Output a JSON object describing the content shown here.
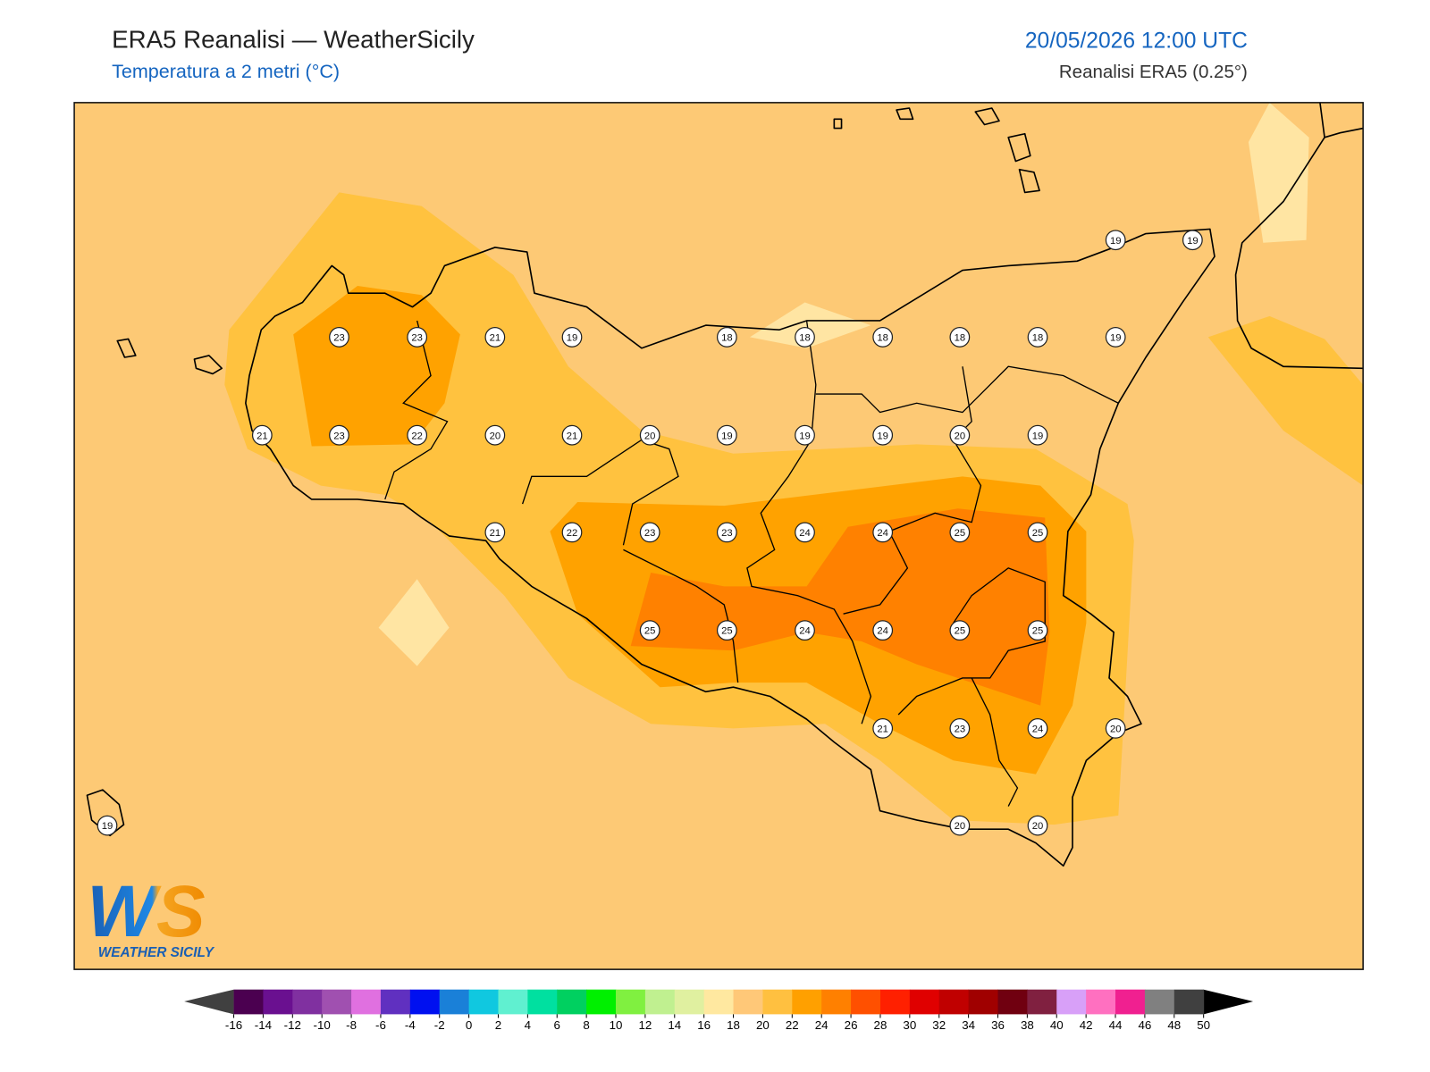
{
  "header": {
    "title": "ERA5 Reanalisi — WeatherSicily",
    "subtitle": "Temperatura a 2 metri (°C)",
    "datetime": "20/05/2026 12:00 UTC",
    "source": "Reanalisi ERA5 (0.25°)"
  },
  "stations": {
    "values": [
      19,
      19,
      23,
      23,
      21,
      19,
      18,
      18,
      18,
      18,
      18,
      19,
      21,
      23,
      22,
      20,
      21,
      20,
      19,
      19,
      19,
      20,
      19,
      21,
      22,
      23,
      23,
      24,
      24,
      25,
      25,
      25,
      25,
      24,
      24,
      25,
      25,
      21,
      23,
      24,
      20,
      19,
      20,
      20
    ]
  },
  "colorbar": {
    "ticks": [
      -16,
      -14,
      -12,
      -10,
      -8,
      -6,
      -4,
      -2,
      0,
      2,
      4,
      6,
      8,
      10,
      12,
      14,
      16,
      18,
      20,
      22,
      24,
      26,
      28,
      30,
      32,
      34,
      36,
      38,
      40,
      42,
      44,
      46,
      48,
      50
    ],
    "colors": [
      "#4b0050",
      "#6a1090",
      "#8030a0",
      "#a050b0",
      "#e070e0",
      "#6030c0",
      "#0010f0",
      "#1a80d8",
      "#10c8e0",
      "#60f0d0",
      "#00e0a0",
      "#00d060",
      "#00f000",
      "#80f040",
      "#c0f090",
      "#e0f0a0",
      "#ffe8a0",
      "#ffc878",
      "#ffc040",
      "#ffa000",
      "#ff8000",
      "#ff5000",
      "#ff2000",
      "#e00000",
      "#c00000",
      "#a00000",
      "#700010",
      "#802040",
      "#d8a0f8",
      "#ff70c0",
      "#f02090",
      "#808080",
      "#404040"
    ]
  },
  "logo": {
    "mark": "WS",
    "text": "WEATHER SICILY"
  }
}
